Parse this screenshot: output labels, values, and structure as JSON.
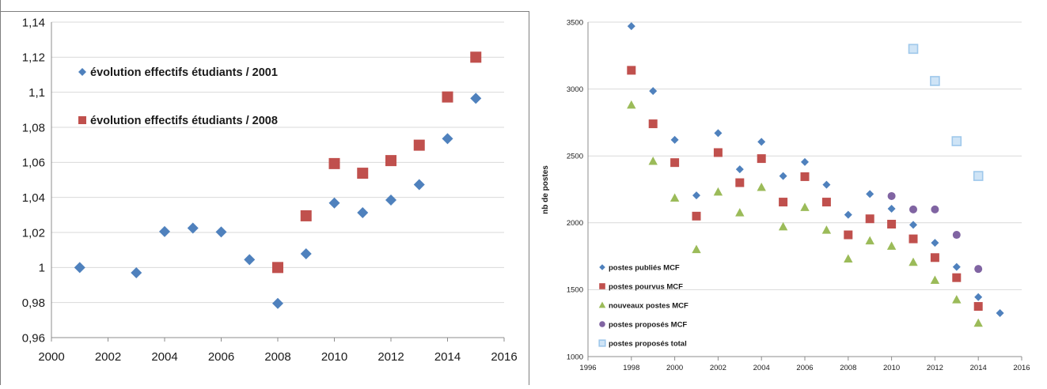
{
  "chart_data": [
    {
      "type": "scatter",
      "title": "",
      "xlabel": "",
      "ylabel": "",
      "xlim": [
        2000,
        2016
      ],
      "ylim": [
        0.96,
        1.14
      ],
      "x_ticks": [
        2000,
        2002,
        2004,
        2006,
        2008,
        2010,
        2012,
        2014,
        2016
      ],
      "y_ticks": [
        "0,96",
        "0,98",
        "1",
        "1,02",
        "1,04",
        "1,06",
        "1,08",
        "1,1",
        "1,12",
        "1,14"
      ],
      "grid": "horizontal",
      "legend": "inside top-left",
      "series": [
        {
          "name": "évolution effectifs étudiants / 2001",
          "marker": "diamond",
          "color": "#4f81bd",
          "x": [
            2001,
            2003,
            2004,
            2005,
            2006,
            2007,
            2008,
            2009,
            2010,
            2011,
            2012,
            2013,
            2014,
            2015
          ],
          "y": [
            1.0,
            0.997,
            1.0205,
            1.0225,
            1.0203,
            1.0045,
            0.9795,
            1.0078,
            1.0368,
            1.0313,
            1.0385,
            1.0473,
            1.0735,
            1.0965
          ]
        },
        {
          "name": "évolution effectifs étudiants / 2008",
          "marker": "square",
          "color": "#c0504d",
          "x": [
            2008,
            2009,
            2010,
            2011,
            2012,
            2013,
            2014,
            2015
          ],
          "y": [
            1.0,
            1.0295,
            1.0593,
            1.0538,
            1.061,
            1.0698,
            1.0973,
            1.12
          ]
        }
      ]
    },
    {
      "type": "scatter",
      "title": "",
      "xlabel": "",
      "ylabel": "nb de postes",
      "xlim": [
        1996,
        2016
      ],
      "ylim": [
        1000,
        3500
      ],
      "x_ticks": [
        1996,
        1998,
        2000,
        2002,
        2004,
        2006,
        2008,
        2010,
        2012,
        2014,
        2016
      ],
      "y_ticks": [
        "1000",
        "1500",
        "2000",
        "2500",
        "3000",
        "3500"
      ],
      "grid": "horizontal",
      "legend": "inside bottom-left",
      "series": [
        {
          "name": "postes publiés MCF",
          "marker": "diamond",
          "color": "#4f81bd",
          "x": [
            1998,
            1999,
            2000,
            2001,
            2002,
            2003,
            2004,
            2005,
            2006,
            2007,
            2008,
            2009,
            2010,
            2011,
            2012,
            2013,
            2014,
            2015
          ],
          "y": [
            3470,
            2985,
            2620,
            2205,
            2670,
            2400,
            2605,
            2350,
            2455,
            2285,
            2060,
            2215,
            2105,
            1985,
            1850,
            1670,
            1445,
            1325
          ]
        },
        {
          "name": "postes pourvus MCF",
          "marker": "square",
          "color": "#c0504d",
          "x": [
            1998,
            1999,
            2000,
            2001,
            2002,
            2003,
            2004,
            2005,
            2006,
            2007,
            2008,
            2009,
            2010,
            2011,
            2012,
            2013,
            2014
          ],
          "y": [
            3140,
            2740,
            2450,
            2050,
            2525,
            2300,
            2480,
            2155,
            2345,
            2155,
            1910,
            2030,
            1990,
            1880,
            1740,
            1590,
            1375
          ]
        },
        {
          "name": "nouveaux postes MCF",
          "marker": "triangle",
          "color": "#9bbb59",
          "x": [
            1998,
            1999,
            2000,
            2001,
            2002,
            2003,
            2004,
            2005,
            2006,
            2007,
            2008,
            2009,
            2010,
            2011,
            2012,
            2013,
            2014
          ],
          "y": [
            2880,
            2460,
            2185,
            1800,
            2230,
            2075,
            2265,
            1970,
            2115,
            1945,
            1730,
            1865,
            1825,
            1705,
            1570,
            1425,
            1250
          ]
        },
        {
          "name": "postes proposés MCF",
          "marker": "circle",
          "color": "#8064a2",
          "x": [
            2010,
            2011,
            2012,
            2013,
            2014
          ],
          "y": [
            2200,
            2100,
            2100,
            1910,
            1655
          ]
        },
        {
          "name": "postes proposés total",
          "marker": "square-outline",
          "color": "#9fc8eb",
          "x": [
            2011,
            2012,
            2013,
            2014
          ],
          "y": [
            3300,
            3060,
            2610,
            2350
          ]
        }
      ]
    }
  ]
}
